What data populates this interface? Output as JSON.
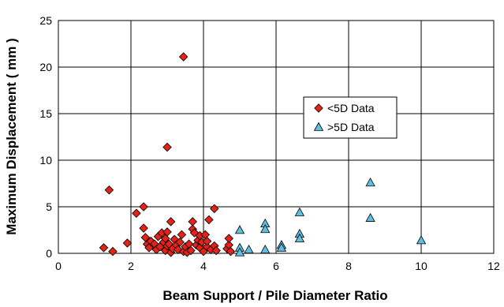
{
  "chart_data": {
    "type": "scatter",
    "title": "",
    "xlabel": "Beam Support / Pile Diameter Ratio",
    "ylabel": "Maximum Displacement ( mm )",
    "xlim": [
      0,
      12
    ],
    "ylim": [
      0,
      25
    ],
    "xticks": [
      "0",
      "2",
      "4",
      "6",
      "8",
      "10",
      "12"
    ],
    "yticks": [
      "0",
      "5",
      "10",
      "15",
      "20",
      "25"
    ],
    "grid": true,
    "legend_position": "right, upper-middle",
    "series": [
      {
        "name": "<5D Data",
        "marker": "diamond",
        "color": "#e32219",
        "points": [
          [
            1.25,
            0.6
          ],
          [
            1.4,
            6.8
          ],
          [
            1.5,
            0.2
          ],
          [
            1.9,
            1.1
          ],
          [
            2.15,
            4.3
          ],
          [
            2.35,
            5.0
          ],
          [
            2.35,
            2.7
          ],
          [
            2.4,
            1.7
          ],
          [
            2.45,
            1.0
          ],
          [
            2.5,
            0.6
          ],
          [
            2.55,
            1.3
          ],
          [
            2.65,
            1.0
          ],
          [
            2.7,
            0.4
          ],
          [
            2.75,
            1.8
          ],
          [
            2.8,
            0.7
          ],
          [
            2.85,
            2.2
          ],
          [
            2.9,
            1.2
          ],
          [
            2.95,
            0.3
          ],
          [
            2.95,
            1.6
          ],
          [
            3.0,
            11.4
          ],
          [
            3.0,
            0.8
          ],
          [
            3.0,
            2.3
          ],
          [
            3.05,
            1.0
          ],
          [
            3.1,
            0.1
          ],
          [
            3.1,
            3.4
          ],
          [
            3.15,
            0.5
          ],
          [
            3.2,
            1.5
          ],
          [
            3.25,
            0.9
          ],
          [
            3.3,
            0.4
          ],
          [
            3.35,
            1.2
          ],
          [
            3.4,
            2.0
          ],
          [
            3.45,
            21.1
          ],
          [
            3.45,
            0.2
          ],
          [
            3.5,
            0.7
          ],
          [
            3.55,
            0.1
          ],
          [
            3.6,
            1.0
          ],
          [
            3.65,
            0.3
          ],
          [
            3.7,
            2.6
          ],
          [
            3.7,
            3.4
          ],
          [
            3.75,
            2.2
          ],
          [
            3.8,
            0.9
          ],
          [
            3.85,
            1.4
          ],
          [
            3.9,
            0.6
          ],
          [
            3.9,
            1.9
          ],
          [
            3.95,
            1.2
          ],
          [
            4.0,
            0.2
          ],
          [
            4.05,
            2.0
          ],
          [
            4.1,
            0.7
          ],
          [
            4.1,
            1.3
          ],
          [
            4.15,
            3.6
          ],
          [
            4.2,
            0.4
          ],
          [
            4.3,
            0.8
          ],
          [
            4.3,
            4.8
          ],
          [
            4.35,
            0.3
          ],
          [
            4.65,
            0.5
          ],
          [
            4.7,
            0.9
          ],
          [
            4.7,
            1.6
          ],
          [
            4.75,
            0.2
          ]
        ]
      },
      {
        "name": ">5D Data",
        "marker": "triangle",
        "color": "#5fbfe3",
        "points": [
          [
            5.0,
            2.5
          ],
          [
            5.0,
            0.6
          ],
          [
            5.0,
            0.1
          ],
          [
            5.25,
            0.4
          ],
          [
            5.7,
            3.2
          ],
          [
            5.7,
            2.6
          ],
          [
            5.7,
            0.4
          ],
          [
            6.15,
            0.9
          ],
          [
            6.15,
            0.6
          ],
          [
            6.65,
            4.4
          ],
          [
            6.65,
            2.1
          ],
          [
            6.65,
            1.6
          ],
          [
            8.6,
            7.6
          ],
          [
            8.6,
            3.8
          ],
          [
            10.0,
            1.4
          ]
        ]
      }
    ]
  }
}
